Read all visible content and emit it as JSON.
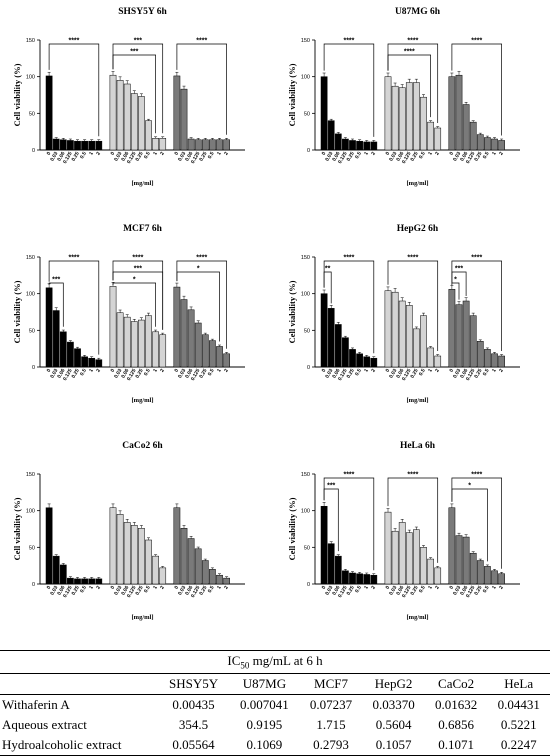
{
  "chart_data": [
    {
      "type": "bar",
      "title": "SHSY5Y 6h",
      "ylabel": "Cell viability (%)",
      "xlabel": "[mg/ml]",
      "ylim": [
        0,
        150
      ],
      "yticks": [
        "0",
        "50",
        "100",
        "150"
      ],
      "categories": [
        "0",
        "0.03",
        "0.06",
        "0.125",
        "0.25",
        "0.5",
        "1",
        "2"
      ],
      "series": [
        {
          "values": [
            101,
            15,
            14,
            13,
            12,
            12,
            12,
            12
          ]
        },
        {
          "values": [
            102,
            95,
            90,
            77,
            73,
            40,
            16,
            16
          ]
        },
        {
          "values": [
            101,
            83,
            15,
            14,
            14,
            14,
            14,
            14
          ]
        }
      ],
      "significance": [
        {
          "group": 0,
          "label": "****"
        },
        {
          "group": 1,
          "label": "***"
        },
        {
          "group": 1,
          "label": "***"
        },
        {
          "group": 2,
          "label": "****"
        }
      ]
    },
    {
      "type": "bar",
      "title": "U87MG 6h",
      "ylabel": "Cell viability (%)",
      "xlabel": "[mg/ml]",
      "ylim": [
        0,
        150
      ],
      "yticks": [
        "0",
        "50",
        "100",
        "150"
      ],
      "categories": [
        "0",
        "0.03",
        "0.06",
        "0.125",
        "0.25",
        "0.5",
        "1",
        "2"
      ],
      "series": [
        {
          "values": [
            100,
            40,
            22,
            15,
            13,
            12,
            11,
            11
          ]
        },
        {
          "values": [
            100,
            87,
            85,
            92,
            92,
            72,
            38,
            30
          ]
        },
        {
          "values": [
            100,
            102,
            62,
            38,
            21,
            17,
            15,
            13
          ]
        }
      ],
      "significance": [
        {
          "group": 0,
          "label": "****"
        },
        {
          "group": 1,
          "label": "****"
        },
        {
          "group": 1,
          "label": "****"
        },
        {
          "group": 2,
          "label": "****"
        }
      ]
    },
    {
      "type": "bar",
      "title": "MCF7 6h",
      "ylabel": "Cell viability (%)",
      "xlabel": "[mg/ml]",
      "ylim": [
        0,
        150
      ],
      "yticks": [
        "0",
        "50",
        "100",
        "150"
      ],
      "categories": [
        "0",
        "0.03",
        "0.06",
        "0.125",
        "0.25",
        "0.5",
        "1",
        "2"
      ],
      "series": [
        {
          "values": [
            108,
            77,
            48,
            34,
            25,
            14,
            12,
            10
          ]
        },
        {
          "values": [
            110,
            74,
            68,
            62,
            64,
            70,
            48,
            44
          ]
        },
        {
          "values": [
            109,
            92,
            78,
            60,
            44,
            36,
            28,
            18
          ]
        }
      ],
      "significance": [
        {
          "group": 0,
          "label": "***"
        },
        {
          "group": 0,
          "label": "****"
        },
        {
          "group": 1,
          "label": "*"
        },
        {
          "group": 1,
          "label": "***"
        },
        {
          "group": 1,
          "label": "****"
        },
        {
          "group": 2,
          "label": "*"
        },
        {
          "group": 2,
          "label": "****"
        }
      ]
    },
    {
      "type": "bar",
      "title": "HepG2 6h",
      "ylabel": "Cell viability (%)",
      "xlabel": "[mg/ml]",
      "ylim": [
        0,
        150
      ],
      "yticks": [
        "0",
        "50",
        "100",
        "150"
      ],
      "categories": [
        "0",
        "0.03",
        "0.06",
        "0.125",
        "0.25",
        "0.5",
        "1",
        "2"
      ],
      "series": [
        {
          "values": [
            100,
            80,
            58,
            40,
            24,
            18,
            14,
            12
          ]
        },
        {
          "values": [
            104,
            102,
            90,
            84,
            52,
            70,
            26,
            15
          ]
        },
        {
          "values": [
            106,
            85,
            90,
            70,
            35,
            24,
            18,
            15
          ]
        }
      ],
      "significance": [
        {
          "group": 0,
          "label": "**"
        },
        {
          "group": 0,
          "label": "****"
        },
        {
          "group": 1,
          "label": "****"
        },
        {
          "group": 2,
          "label": "*"
        },
        {
          "group": 2,
          "label": "***"
        },
        {
          "group": 2,
          "label": "****"
        }
      ]
    },
    {
      "type": "bar",
      "title": "CaCo2 6h",
      "ylabel": "Cell viability (%)",
      "xlabel": "[mg/ml]",
      "ylim": [
        0,
        150
      ],
      "yticks": [
        "0",
        "50",
        "100",
        "150"
      ],
      "categories": [
        "0",
        "0.03",
        "0.06",
        "0.125",
        "0.25",
        "0.5",
        "1",
        "2"
      ],
      "series": [
        {
          "values": [
            104,
            38,
            26,
            8,
            7,
            7,
            7,
            7
          ]
        },
        {
          "values": [
            104,
            95,
            84,
            80,
            76,
            60,
            38,
            22
          ]
        },
        {
          "values": [
            104,
            76,
            62,
            48,
            32,
            20,
            12,
            8
          ]
        }
      ],
      "significance": []
    },
    {
      "type": "bar",
      "title": "HeLa 6h",
      "ylabel": "Cell viability (%)",
      "xlabel": "[mg/ml]",
      "ylim": [
        0,
        150
      ],
      "yticks": [
        "0",
        "50",
        "100",
        "150"
      ],
      "categories": [
        "0",
        "0.03",
        "0.06",
        "0.125",
        "0.25",
        "0.5",
        "1",
        "2"
      ],
      "series": [
        {
          "values": [
            106,
            55,
            38,
            18,
            15,
            14,
            13,
            12
          ]
        },
        {
          "values": [
            98,
            72,
            84,
            70,
            74,
            50,
            34,
            22
          ]
        },
        {
          "values": [
            104,
            66,
            64,
            42,
            32,
            24,
            18,
            14
          ]
        }
      ],
      "significance": [
        {
          "group": 0,
          "label": "***"
        },
        {
          "group": 0,
          "label": "****"
        },
        {
          "group": 1,
          "label": "****"
        },
        {
          "group": 2,
          "label": "*"
        },
        {
          "group": 2,
          "label": "****"
        }
      ]
    }
  ],
  "colors": {
    "series": [
      "#000000",
      "#d4d4d4",
      "#7a7a7a"
    ],
    "axis": "#000000"
  },
  "table": {
    "caption_pre": "IC",
    "caption_sub": "50",
    "caption_post": " mg/mL at 6 h",
    "columns": [
      "SHSY5Y",
      "U87MG",
      "MCF7",
      "HepG2",
      "CaCo2",
      "HeLa"
    ],
    "rows": [
      {
        "label": "Withaferin A",
        "values": [
          "0.00435",
          "0.007041",
          "0.07237",
          "0.03370",
          "0.01632",
          "0.04431"
        ]
      },
      {
        "label": "Aqueous extract",
        "values": [
          "354.5",
          "0.9195",
          "1.715",
          "0.5604",
          "0.6856",
          "0.5221"
        ]
      },
      {
        "label": "Hydroalcoholic extract",
        "values": [
          "0.05564",
          "0.1069",
          "0.2793",
          "0.1057",
          "0.1071",
          "0.2247"
        ]
      }
    ]
  }
}
